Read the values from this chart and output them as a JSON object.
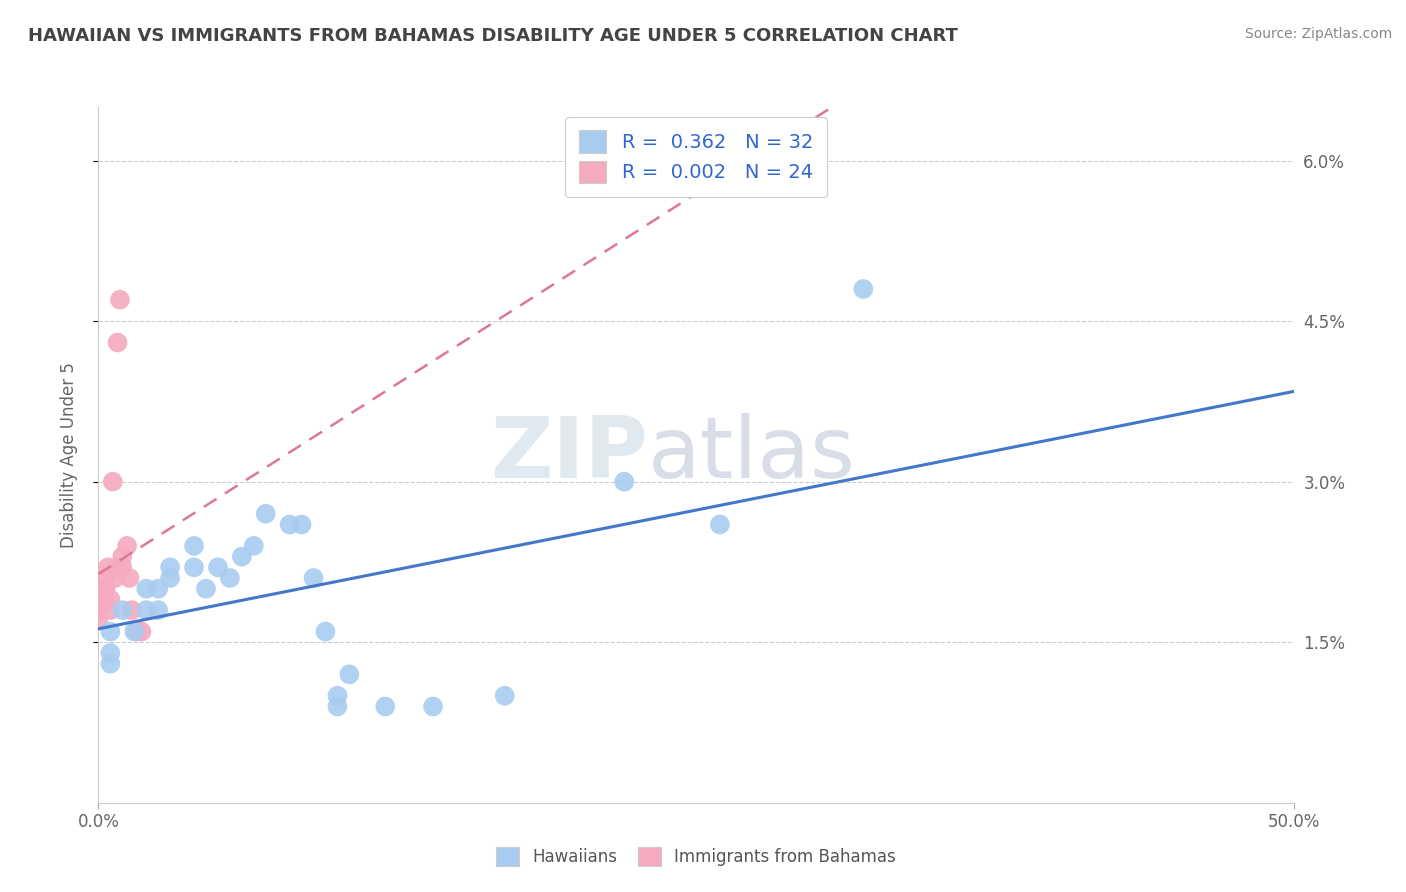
{
  "title": "HAWAIIAN VS IMMIGRANTS FROM BAHAMAS DISABILITY AGE UNDER 5 CORRELATION CHART",
  "source": "Source: ZipAtlas.com",
  "xlabel_label": "Hawaiians",
  "xlabel_label2": "Immigrants from Bahamas",
  "ylabel": "Disability Age Under 5",
  "xlim": [
    0.0,
    0.5
  ],
  "ylim": [
    0.0,
    0.065
  ],
  "xticks": [
    0.0,
    0.5
  ],
  "xticklabels": [
    "0.0%",
    "50.0%"
  ],
  "yticks_right": [
    0.015,
    0.03,
    0.045,
    0.06
  ],
  "ytick_right_labels": [
    "1.5%",
    "3.0%",
    "4.5%",
    "6.0%"
  ],
  "R_blue": 0.362,
  "N_blue": 32,
  "R_pink": 0.002,
  "N_pink": 24,
  "blue_color": "#A8CCF0",
  "pink_color": "#F5AABF",
  "line_blue": "#4477CC",
  "line_pink": "#DD7799",
  "watermark_zip": "ZIP",
  "watermark_atlas": "atlas",
  "hawaiians_x": [
    0.005,
    0.005,
    0.005,
    0.01,
    0.015,
    0.02,
    0.02,
    0.025,
    0.025,
    0.03,
    0.03,
    0.04,
    0.04,
    0.045,
    0.05,
    0.055,
    0.06,
    0.065,
    0.07,
    0.08,
    0.085,
    0.09,
    0.095,
    0.1,
    0.1,
    0.105,
    0.12,
    0.14,
    0.17,
    0.22,
    0.26,
    0.32
  ],
  "hawaiians_y": [
    0.013,
    0.014,
    0.016,
    0.018,
    0.016,
    0.018,
    0.02,
    0.018,
    0.02,
    0.021,
    0.022,
    0.022,
    0.024,
    0.02,
    0.022,
    0.021,
    0.023,
    0.024,
    0.027,
    0.026,
    0.026,
    0.021,
    0.016,
    0.009,
    0.01,
    0.012,
    0.009,
    0.009,
    0.01,
    0.03,
    0.026,
    0.048
  ],
  "bahamas_x": [
    0.0,
    0.0,
    0.0,
    0.0,
    0.0,
    0.002,
    0.002,
    0.003,
    0.003,
    0.004,
    0.005,
    0.005,
    0.006,
    0.007,
    0.008,
    0.008,
    0.009,
    0.01,
    0.01,
    0.012,
    0.013,
    0.014,
    0.016,
    0.018
  ],
  "bahamas_y": [
    0.017,
    0.018,
    0.019,
    0.019,
    0.02,
    0.019,
    0.02,
    0.02,
    0.021,
    0.022,
    0.018,
    0.019,
    0.03,
    0.021,
    0.022,
    0.043,
    0.047,
    0.022,
    0.023,
    0.024,
    0.021,
    0.018,
    0.016,
    0.016
  ]
}
